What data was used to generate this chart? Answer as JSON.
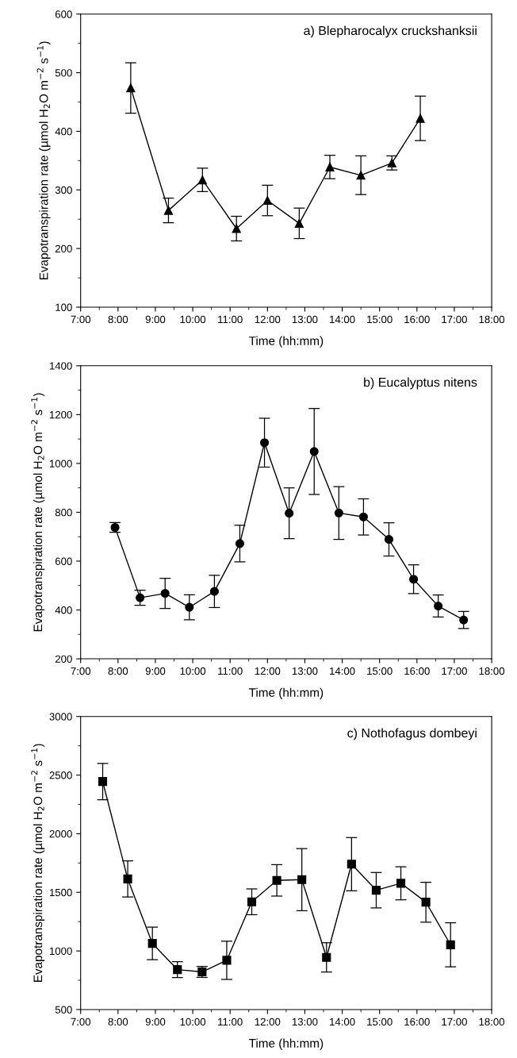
{
  "chart_data": [
    {
      "type": "line",
      "xlabel": "Time (hh:mm)",
      "ylabel": "Evapotranspiration rate (µmol H$_{2}$O m$^{−2}$ s$^{−1}$)",
      "annotations": [
        "a) Blepharocalyx cruckshanksii"
      ],
      "xlim": [
        7,
        18
      ],
      "xticks": [
        {
          "value": 7,
          "label": "7:00"
        },
        {
          "value": 8,
          "label": "8:00"
        },
        {
          "value": 9,
          "label": "9:00"
        },
        {
          "value": 10,
          "label": "10:00"
        },
        {
          "value": 11,
          "label": "11:00"
        },
        {
          "value": 12,
          "label": "12:00"
        },
        {
          "value": 13,
          "label": "13:00"
        },
        {
          "value": 14,
          "label": "14:00"
        },
        {
          "value": 15,
          "label": "15:00"
        },
        {
          "value": 16,
          "label": "16:00"
        },
        {
          "value": 17,
          "label": "17:00"
        },
        {
          "value": 18,
          "label": "18:00"
        }
      ],
      "ylim": [
        100,
        600
      ],
      "yticks": [
        100,
        200,
        300,
        400,
        500,
        600
      ],
      "marker": "triangle",
      "line_style": "solid",
      "x": [
        8.34,
        9.35,
        10.26,
        11.17,
        12.0,
        12.85,
        13.67,
        14.5,
        15.33,
        16.09
      ],
      "series": [
        {
          "color": "#000000",
          "values": [
            474,
            265,
            317,
            234,
            282,
            243,
            339,
            325,
            346,
            422
          ],
          "errors": [
            43,
            21,
            20,
            21,
            26,
            26,
            20,
            33,
            12,
            38
          ]
        }
      ]
    },
    {
      "type": "line",
      "xlabel": "Time (hh:mm)",
      "ylabel": "Evapotranspiration rate (µmol H$_{2}$O m$^{−2}$ s$^{−1}$)",
      "annotations": [
        "b) Eucalyptus nitens"
      ],
      "xlim": [
        7,
        18
      ],
      "xticks": [
        {
          "value": 7,
          "label": "7:00"
        },
        {
          "value": 8,
          "label": "8:00"
        },
        {
          "value": 9,
          "label": "9:00"
        },
        {
          "value": 10,
          "label": "10:00"
        },
        {
          "value": 11,
          "label": "11:00"
        },
        {
          "value": 12,
          "label": "12:00"
        },
        {
          "value": 13,
          "label": "13:00"
        },
        {
          "value": 14,
          "label": "14:00"
        },
        {
          "value": 15,
          "label": "15:00"
        },
        {
          "value": 16,
          "label": "16:00"
        },
        {
          "value": 17,
          "label": "17:00"
        },
        {
          "value": 18,
          "label": "18:00"
        }
      ],
      "ylim": [
        200,
        1400
      ],
      "yticks": [
        200,
        400,
        600,
        800,
        1000,
        1200,
        1400
      ],
      "marker": "circle",
      "line_style": "solid",
      "x": [
        7.92,
        8.59,
        9.26,
        9.91,
        10.58,
        11.26,
        11.92,
        12.58,
        13.25,
        13.91,
        14.57,
        15.25,
        15.91,
        16.57,
        17.25
      ],
      "series": [
        {
          "color": "#000000",
          "values": [
            738,
            450,
            468,
            411,
            476,
            672,
            1085,
            796,
            1049,
            797,
            781,
            689,
            526,
            416,
            359
          ],
          "errors": [
            20,
            31,
            62,
            51,
            66,
            75,
            100,
            104,
            176,
            108,
            74,
            68,
            59,
            45,
            35
          ]
        }
      ]
    },
    {
      "type": "line",
      "xlabel": "Time (hh:mm)",
      "ylabel": "Evapotranspiration rate (µmol H$_{2}$O m$^{−2}$ s$^{−1}$)",
      "annotations": [
        "c) Nothofagus dombeyi"
      ],
      "xlim": [
        7,
        18
      ],
      "xticks": [
        {
          "value": 7,
          "label": "7:00"
        },
        {
          "value": 8,
          "label": "8:00"
        },
        {
          "value": 9,
          "label": "9:00"
        },
        {
          "value": 10,
          "label": "10:00"
        },
        {
          "value": 11,
          "label": "11:00"
        },
        {
          "value": 12,
          "label": "12:00"
        },
        {
          "value": 13,
          "label": "13:00"
        },
        {
          "value": 14,
          "label": "14:00"
        },
        {
          "value": 15,
          "label": "15:00"
        },
        {
          "value": 16,
          "label": "16:00"
        },
        {
          "value": 17,
          "label": "17:00"
        },
        {
          "value": 18,
          "label": "18:00"
        }
      ],
      "ylim": [
        500,
        3000
      ],
      "yticks": [
        500,
        1000,
        1500,
        2000,
        2500,
        3000
      ],
      "marker": "square",
      "line_style": "solid",
      "x": [
        7.59,
        8.26,
        8.92,
        9.59,
        10.25,
        10.91,
        11.58,
        12.25,
        12.92,
        13.58,
        14.25,
        14.91,
        15.57,
        16.24,
        16.9
      ],
      "series": [
        {
          "color": "#000000",
          "values": [
            2445,
            1614,
            1064,
            841,
            821,
            920,
            1419,
            1602,
            1608,
            945,
            1740,
            1518,
            1577,
            1416,
            1052
          ],
          "errors": [
            155,
            154,
            139,
            68,
            47,
            163,
            110,
            134,
            265,
            125,
            227,
            151,
            141,
            170,
            188
          ]
        }
      ]
    }
  ]
}
